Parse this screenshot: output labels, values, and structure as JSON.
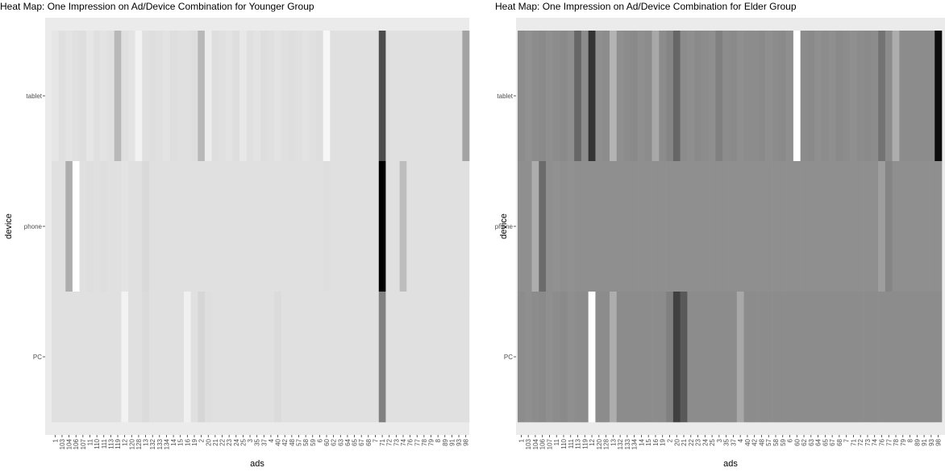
{
  "shared": {
    "ads": [
      "1",
      "103",
      "104",
      "106",
      "107",
      "11",
      "110",
      "111",
      "113",
      "119",
      "12",
      "120",
      "128",
      "13",
      "132",
      "133",
      "134",
      "14",
      "15",
      "16",
      "19",
      "2",
      "20",
      "21",
      "22",
      "23",
      "24",
      "25",
      "3",
      "35",
      "37",
      "4",
      "40",
      "42",
      "48",
      "57",
      "58",
      "59",
      "6",
      "60",
      "62",
      "63",
      "64",
      "65",
      "67",
      "68",
      "7",
      "71",
      "72",
      "73",
      "74",
      "76",
      "77",
      "78",
      "79",
      "8",
      "89",
      "91",
      "93",
      "98"
    ],
    "devices": [
      "tablet",
      "phone",
      "PC"
    ],
    "xlabel": "ads",
    "ylabel": "device"
  },
  "chart_data": [
    {
      "type": "heatmap",
      "title": "Heat Map: One Impression on Ad/Device Combination for Younger Group",
      "xlabel": "ads",
      "ylabel": "device",
      "x": [
        "1",
        "103",
        "104",
        "106",
        "107",
        "11",
        "110",
        "111",
        "113",
        "119",
        "12",
        "120",
        "128",
        "13",
        "132",
        "133",
        "134",
        "14",
        "15",
        "16",
        "19",
        "2",
        "20",
        "21",
        "22",
        "23",
        "24",
        "25",
        "3",
        "35",
        "37",
        "4",
        "40",
        "42",
        "48",
        "57",
        "58",
        "59",
        "6",
        "60",
        "62",
        "63",
        "64",
        "65",
        "67",
        "68",
        "7",
        "71",
        "72",
        "73",
        "74",
        "76",
        "77",
        "78",
        "79",
        "8",
        "89",
        "91",
        "93",
        "98"
      ],
      "y": [
        "tablet",
        "phone",
        "PC"
      ],
      "color_scale": {
        "low": "#000000",
        "high": "#ffffff"
      },
      "values": [
        [
          0.9,
          0.88,
          0.89,
          0.88,
          0.87,
          0.9,
          0.88,
          0.89,
          0.88,
          0.72,
          0.88,
          0.89,
          0.95,
          0.88,
          0.87,
          0.88,
          0.89,
          0.87,
          0.88,
          0.88,
          0.87,
          0.72,
          0.92,
          0.87,
          0.88,
          0.89,
          0.87,
          0.91,
          0.88,
          0.89,
          0.87,
          0.88,
          0.89,
          0.88,
          0.87,
          0.88,
          0.89,
          0.88,
          0.87,
          0.97,
          0.88,
          0.88,
          0.88,
          0.88,
          0.88,
          0.88,
          0.88,
          0.3,
          0.88,
          0.88,
          0.88,
          0.88,
          0.88,
          0.88,
          0.88,
          0.88,
          0.88,
          0.88,
          0.88,
          0.64
        ],
        [
          0.88,
          0.88,
          0.68,
          1.0,
          0.88,
          0.87,
          0.88,
          0.87,
          0.88,
          0.88,
          0.89,
          0.88,
          0.88,
          0.85,
          0.88,
          0.88,
          0.88,
          0.88,
          0.88,
          0.88,
          0.88,
          0.88,
          0.88,
          0.88,
          0.88,
          0.88,
          0.88,
          0.88,
          0.88,
          0.88,
          0.88,
          0.88,
          0.88,
          0.88,
          0.88,
          0.88,
          0.88,
          0.88,
          0.88,
          0.87,
          0.88,
          0.88,
          0.88,
          0.88,
          0.88,
          0.88,
          0.88,
          0.0,
          0.88,
          0.88,
          0.74,
          0.88,
          0.88,
          0.88,
          0.88,
          0.88,
          0.88,
          0.88,
          0.88,
          0.88
        ],
        [
          0.88,
          0.88,
          0.88,
          0.88,
          0.88,
          0.88,
          0.88,
          0.88,
          0.88,
          0.88,
          0.95,
          0.88,
          0.88,
          0.86,
          0.88,
          0.88,
          0.88,
          0.88,
          0.88,
          0.94,
          0.88,
          0.84,
          0.87,
          0.88,
          0.88,
          0.88,
          0.88,
          0.88,
          0.88,
          0.88,
          0.88,
          0.88,
          0.86,
          0.88,
          0.88,
          0.88,
          0.88,
          0.88,
          0.88,
          0.88,
          0.88,
          0.88,
          0.88,
          0.88,
          0.88,
          0.88,
          0.88,
          0.5,
          0.88,
          0.88,
          0.88,
          0.88,
          0.88,
          0.88,
          0.88,
          0.88,
          0.88,
          0.88,
          0.88,
          0.88
        ]
      ]
    },
    {
      "type": "heatmap",
      "title": "Heat Map: One Impression on Ad/Device Combination for Elder Group",
      "xlabel": "ads",
      "ylabel": "device",
      "x": [
        "1",
        "103",
        "104",
        "106",
        "107",
        "11",
        "110",
        "111",
        "113",
        "119",
        "12",
        "120",
        "128",
        "13",
        "132",
        "133",
        "134",
        "14",
        "15",
        "16",
        "19",
        "2",
        "20",
        "21",
        "22",
        "23",
        "24",
        "25",
        "3",
        "35",
        "37",
        "4",
        "40",
        "42",
        "48",
        "57",
        "58",
        "59",
        "6",
        "60",
        "62",
        "63",
        "64",
        "65",
        "67",
        "68",
        "7",
        "71",
        "72",
        "73",
        "74",
        "76",
        "77",
        "78",
        "79",
        "8",
        "89",
        "91",
        "93",
        "98"
      ],
      "y": [
        "tablet",
        "phone",
        "PC"
      ],
      "color_scale": {
        "low": "#000000",
        "high": "#ffffff"
      },
      "values": [
        [
          0.55,
          0.57,
          0.55,
          0.54,
          0.56,
          0.55,
          0.54,
          0.56,
          0.4,
          0.55,
          0.2,
          0.56,
          0.55,
          0.7,
          0.56,
          0.55,
          0.54,
          0.56,
          0.55,
          0.66,
          0.55,
          0.52,
          0.4,
          0.55,
          0.56,
          0.54,
          0.55,
          0.56,
          0.5,
          0.55,
          0.54,
          0.56,
          0.55,
          0.55,
          0.54,
          0.56,
          0.55,
          0.54,
          0.56,
          1.0,
          0.55,
          0.54,
          0.56,
          0.55,
          0.56,
          0.54,
          0.55,
          0.56,
          0.55,
          0.54,
          0.55,
          0.45,
          0.55,
          0.68,
          0.55,
          0.55,
          0.55,
          0.55,
          0.55,
          0.05
        ],
        [
          0.56,
          0.56,
          0.68,
          0.42,
          0.56,
          0.57,
          0.56,
          0.57,
          0.56,
          0.56,
          0.56,
          0.56,
          0.56,
          0.56,
          0.56,
          0.56,
          0.56,
          0.56,
          0.56,
          0.56,
          0.56,
          0.56,
          0.56,
          0.56,
          0.56,
          0.56,
          0.56,
          0.56,
          0.56,
          0.56,
          0.56,
          0.56,
          0.56,
          0.56,
          0.56,
          0.56,
          0.56,
          0.56,
          0.56,
          0.56,
          0.56,
          0.56,
          0.56,
          0.56,
          0.56,
          0.56,
          0.56,
          0.56,
          0.56,
          0.56,
          0.56,
          0.62,
          0.52,
          0.56,
          0.56,
          0.56,
          0.56,
          0.56,
          0.56,
          0.56
        ],
        [
          0.55,
          0.56,
          0.55,
          0.54,
          0.56,
          0.55,
          0.54,
          0.56,
          0.55,
          0.55,
          1.0,
          0.55,
          0.55,
          0.68,
          0.55,
          0.55,
          0.55,
          0.55,
          0.55,
          0.55,
          0.55,
          0.5,
          0.25,
          0.35,
          0.55,
          0.55,
          0.55,
          0.55,
          0.55,
          0.55,
          0.55,
          0.66,
          0.55,
          0.55,
          0.55,
          0.55,
          0.55,
          0.55,
          0.55,
          0.55,
          0.55,
          0.55,
          0.55,
          0.55,
          0.55,
          0.55,
          0.55,
          0.55,
          0.55,
          0.55,
          0.55,
          0.55,
          0.55,
          0.55,
          0.55,
          0.55,
          0.55,
          0.55,
          0.55,
          0.55
        ]
      ]
    }
  ]
}
